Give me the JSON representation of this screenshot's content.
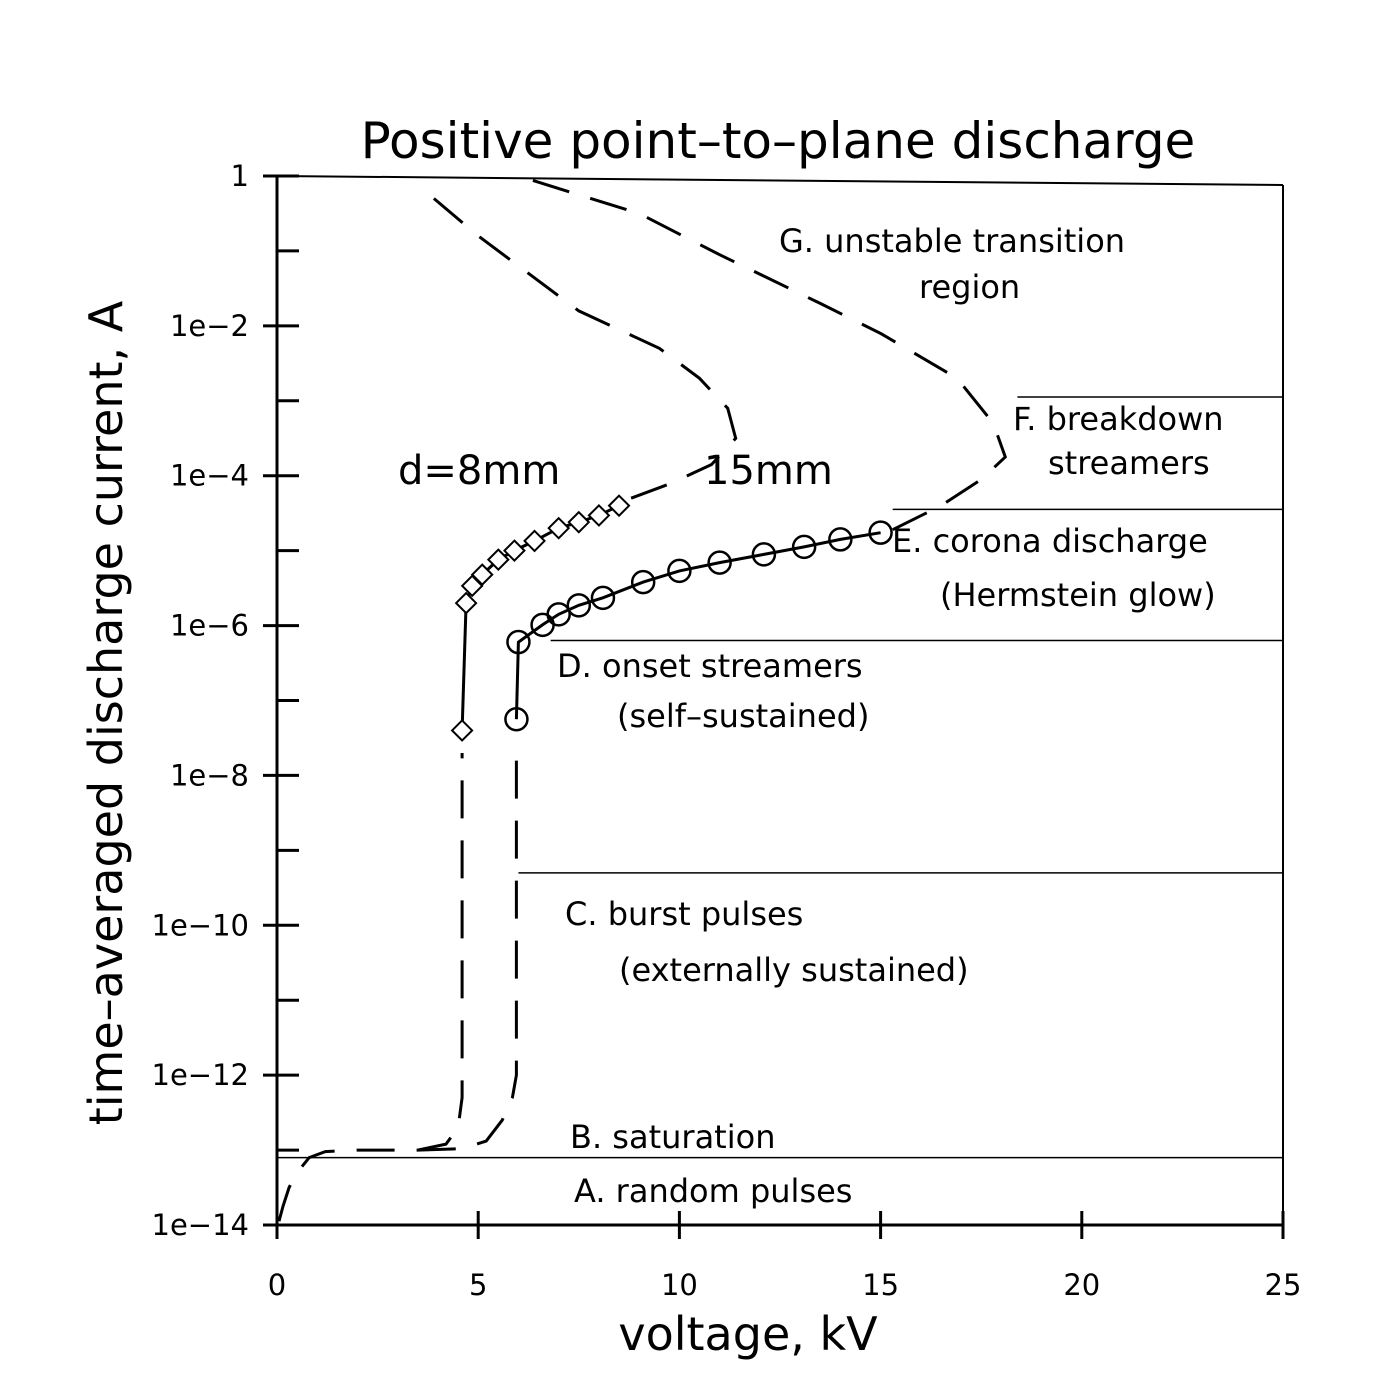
{
  "chart_data": {
    "type": "line",
    "title": "Positive point–to–plane discharge",
    "xlabel": "voltage, kV",
    "ylabel": "time–averaged discharge current, A",
    "xlim": [
      0,
      25
    ],
    "ylim_log10": [
      -14,
      0
    ],
    "xticks": [
      0,
      5,
      10,
      15,
      20,
      25
    ],
    "xtick_labels": [
      "0",
      "5",
      "10",
      "15",
      "20",
      "25"
    ],
    "yticks_labeled": [
      0,
      -2,
      -4,
      -6,
      -8,
      -10,
      -12,
      -14
    ],
    "ytick_labels": [
      "1",
      "1e−2",
      "1e−4",
      "1e−6",
      "1e−8",
      "1e−10",
      "1e−12",
      "1e−14"
    ],
    "yticks_minor": [
      -1,
      -3,
      -5,
      -7,
      -9,
      -11,
      -13
    ],
    "series": [
      {
        "name": "d=8mm",
        "label": "d=8mm",
        "marker": "diamond",
        "points": [
          [
            4.6,
            -7.4
          ],
          [
            4.7,
            -5.7
          ],
          [
            4.85,
            -5.47
          ],
          [
            5.1,
            -5.32
          ],
          [
            5.5,
            -5.12
          ],
          [
            5.9,
            -5.0
          ],
          [
            6.4,
            -4.87
          ],
          [
            7.0,
            -4.7
          ],
          [
            7.5,
            -4.62
          ],
          [
            8.0,
            -4.53
          ],
          [
            8.5,
            -4.4
          ]
        ]
      },
      {
        "name": "15mm",
        "label": "15mm",
        "marker": "circle",
        "points": [
          [
            5.95,
            -7.25
          ],
          [
            6.0,
            -6.22
          ],
          [
            6.6,
            -5.99
          ],
          [
            7.0,
            -5.85
          ],
          [
            7.5,
            -5.73
          ],
          [
            8.1,
            -5.63
          ],
          [
            9.1,
            -5.42
          ],
          [
            10.0,
            -5.27
          ],
          [
            11.0,
            -5.16
          ],
          [
            12.1,
            -5.05
          ],
          [
            13.1,
            -4.95
          ],
          [
            14.0,
            -4.85
          ],
          [
            15.0,
            -4.76
          ]
        ]
      }
    ],
    "dashed_curves": [
      {
        "name": "saturation-curve",
        "points": [
          [
            0.05,
            -13.95
          ],
          [
            0.15,
            -13.75
          ],
          [
            0.3,
            -13.5
          ],
          [
            0.5,
            -13.3
          ],
          [
            0.8,
            -13.1
          ],
          [
            1.2,
            -13.02
          ],
          [
            2.0,
            -13.0
          ],
          [
            3.5,
            -13.0
          ],
          [
            4.2,
            -12.92
          ],
          [
            4.5,
            -12.7
          ],
          [
            4.6,
            -12.3
          ],
          [
            4.6,
            -11.5
          ],
          [
            4.6,
            -8.0
          ],
          [
            4.6,
            -7.7
          ]
        ]
      },
      {
        "name": "saturation-curve-15mm",
        "points": [
          [
            3.5,
            -13.0
          ],
          [
            4.6,
            -12.98
          ],
          [
            5.2,
            -12.88
          ],
          [
            5.6,
            -12.6
          ],
          [
            5.85,
            -12.3
          ],
          [
            5.95,
            -12.0
          ],
          [
            5.95,
            -11.0
          ],
          [
            5.95,
            -8.0
          ],
          [
            5.95,
            -7.55
          ]
        ]
      },
      {
        "name": "8mm-transition-curve",
        "points": [
          [
            8.8,
            -4.3
          ],
          [
            9.8,
            -4.1
          ],
          [
            10.8,
            -3.85
          ],
          [
            11.4,
            -3.5
          ],
          [
            11.2,
            -3.1
          ],
          [
            10.5,
            -2.7
          ],
          [
            9.5,
            -2.3
          ],
          [
            7.5,
            -1.8
          ],
          [
            6.0,
            -1.2
          ],
          [
            5.0,
            -0.8
          ],
          [
            3.9,
            -0.3
          ]
        ]
      },
      {
        "name": "15mm-transition-curve",
        "points": [
          [
            15.3,
            -4.72
          ],
          [
            16.5,
            -4.4
          ],
          [
            17.5,
            -4.05
          ],
          [
            18.1,
            -3.75
          ],
          [
            17.8,
            -3.3
          ],
          [
            16.9,
            -2.7
          ],
          [
            15.0,
            -2.1
          ],
          [
            13.5,
            -1.7
          ],
          [
            11.0,
            -1.05
          ],
          [
            9.0,
            -0.5
          ],
          [
            6.0,
            0.0
          ]
        ]
      }
    ],
    "region_boundaries": [
      {
        "name": "boundary-G-F",
        "x_start": 18.4,
        "x_end": 25.0,
        "y_log10": -2.95
      },
      {
        "name": "boundary-F-E",
        "x_start": 15.3,
        "x_end": 25.0,
        "y_log10": -4.45
      },
      {
        "name": "boundary-E-D",
        "x_start": 6.8,
        "x_end": 25.0,
        "y_log10": -6.2
      },
      {
        "name": "boundary-D-C",
        "x_start": 6.0,
        "x_end": 25.0,
        "y_log10": -9.3
      },
      {
        "name": "boundary-B-A",
        "x_start": 0.0,
        "x_end": 25.0,
        "y_log10": -13.1
      },
      {
        "name": "bottom-line",
        "x_start": 0.0,
        "x_end": 25.0,
        "y_log10": -14.0
      }
    ],
    "regions": [
      {
        "name": "region-G",
        "lines": [
          "G. unstable transition",
          "region"
        ]
      },
      {
        "name": "region-F",
        "lines": [
          "F. breakdown",
          "streamers"
        ]
      },
      {
        "name": "region-E",
        "lines": [
          "E. corona discharge",
          "(Hermstein glow)"
        ]
      },
      {
        "name": "region-D",
        "lines": [
          "D. onset streamers",
          "(self–sustained)"
        ]
      },
      {
        "name": "region-C",
        "lines": [
          "C. burst pulses",
          "(externally sustained)"
        ]
      },
      {
        "name": "region-B",
        "lines": [
          "B. saturation"
        ]
      },
      {
        "name": "region-A",
        "lines": [
          "A. random pulses"
        ]
      }
    ]
  }
}
